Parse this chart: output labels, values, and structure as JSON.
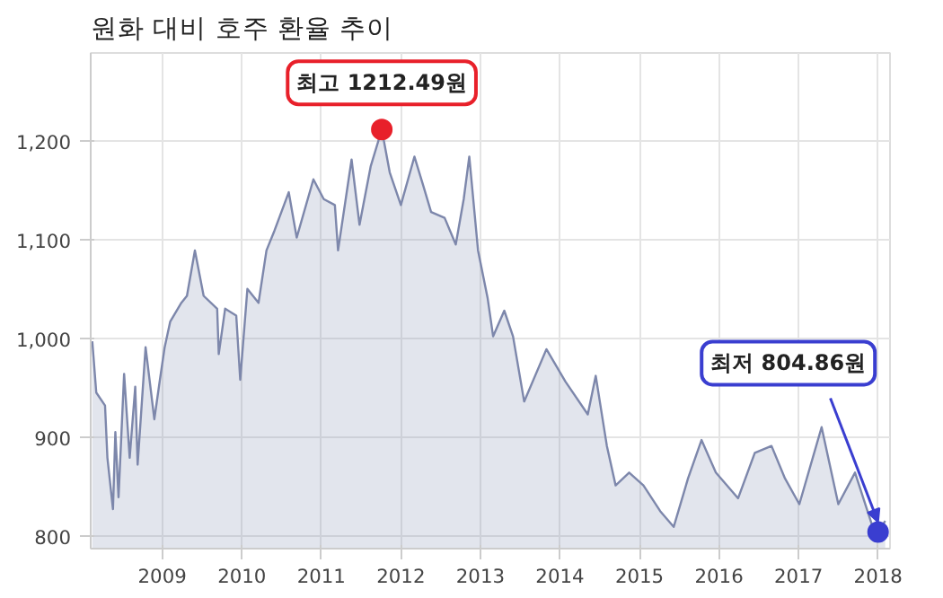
{
  "chart_data": {
    "type": "area",
    "title": "원화 대비 호주 환율 추이",
    "series": [
      {
        "color": "#7d87ab",
        "x": [
          2008.12,
          2008.17,
          2008.28,
          2008.31,
          2008.38,
          2008.41,
          2008.45,
          2008.52,
          2008.59,
          2008.66,
          2008.69,
          2008.79,
          2008.9,
          2008.97,
          2009.03,
          2009.1,
          2009.24,
          2009.31,
          2009.41,
          2009.52,
          2009.69,
          2009.71,
          2009.79,
          2009.93,
          2009.98,
          2010.07,
          2010.21,
          2010.31,
          2010.41,
          2010.59,
          2010.69,
          2010.9,
          2011.03,
          2011.17,
          2011.21,
          2011.38,
          2011.48,
          2011.62,
          2011.76,
          2011.86,
          2012.0,
          2012.17,
          2012.28,
          2012.38,
          2012.55,
          2012.69,
          2012.79,
          2012.86,
          2012.97,
          2013.09,
          2013.16,
          2013.3,
          2013.41,
          2013.55,
          2013.83,
          2014.07,
          2014.35,
          2014.45,
          2014.59,
          2014.7,
          2014.87,
          2015.05,
          2015.26,
          2015.43,
          2015.61,
          2015.78,
          2015.96,
          2016.24,
          2016.45,
          2016.66,
          2016.83,
          2017.01,
          2017.29,
          2017.5,
          2017.71,
          2017.92,
          2018.0,
          2018.09
        ],
        "values": [
          998,
          946,
          933,
          880,
          828,
          906,
          840,
          965,
          880,
          952,
          873,
          992,
          919,
          959,
          992,
          1018,
          1037,
          1044,
          1090,
          1044,
          1031,
          985,
          1031,
          1024,
          959,
          1051,
          1037,
          1090,
          1110,
          1149,
          1103,
          1162,
          1142,
          1136,
          1090,
          1182,
          1116,
          1175,
          1212.49,
          1169,
          1136,
          1185,
          1156,
          1129,
          1123,
          1096,
          1142,
          1185,
          1090,
          1042,
          1003,
          1029,
          1003,
          937,
          990,
          957,
          924,
          963,
          892,
          852,
          865,
          852,
          826,
          810,
          859,
          898,
          865,
          839,
          885,
          892,
          859,
          833,
          911,
          833,
          865,
          813,
          804.86,
          816
        ]
      },
      {
        "type": "scatter",
        "color": "#e8202a",
        "x": [
          2011.76
        ],
        "values": [
          1212.49
        ]
      },
      {
        "type": "scatter",
        "color": "#3a3ed0",
        "x": [
          2018.0
        ],
        "values": [
          804.86
        ]
      }
    ],
    "annotations": [
      {
        "text": "최고 1212.49원",
        "x": 2011.76,
        "y": 1212.49
      },
      {
        "text": "최저 804.86원",
        "x": 2018.0,
        "y": 804.86
      }
    ],
    "xlim": [
      2008.1,
      2018.15
    ],
    "ylim": [
      788,
      1290
    ],
    "xticks": [
      2009,
      2010,
      2011,
      2012,
      2013,
      2014,
      2015,
      2016,
      2017,
      2018
    ],
    "yticks": [
      800,
      900,
      {
        "value": 1000,
        "label": "1,000"
      },
      {
        "value": 1100,
        "label": "1,100"
      },
      {
        "value": 1200,
        "label": "1,200"
      }
    ],
    "grid": true
  }
}
